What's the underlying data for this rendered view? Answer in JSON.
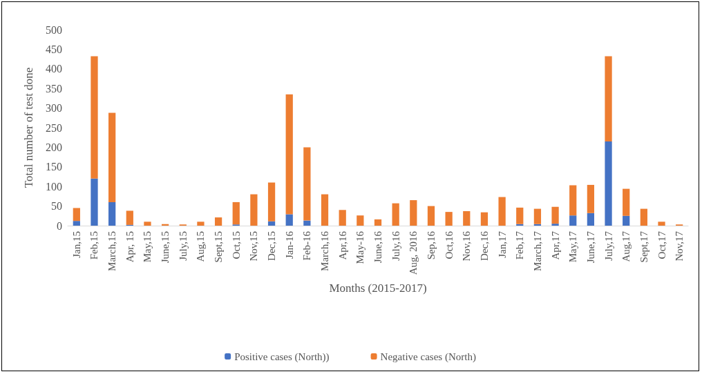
{
  "chart_data": {
    "type": "bar",
    "stacked": true,
    "xlabel": "Months (2015-2017)",
    "ylabel": "Total number of test done",
    "categories": [
      "Jan,15",
      "Feb,15",
      "March,15",
      "Apr, 15",
      "May,15",
      "June,15",
      "July,15",
      "Aug,15",
      "Sept,15",
      "Oct,15",
      "Nov,15",
      "Dec,15",
      "Jan-16",
      "Feb-16",
      "March,16",
      "Apr,16",
      "May-16",
      "June,16",
      "July,16",
      "Aug, 2016",
      "Sep,16",
      "Oct,16",
      "Nov,16",
      "Dec,16",
      "Jan,17",
      "Feb,17",
      "March,17",
      "Apr,17",
      "May,17",
      "June,17",
      "July,17",
      "Aug,17",
      "Sept,17",
      "Oct,17",
      "Nov,17"
    ],
    "series": [
      {
        "name": "Positive cases (North))",
        "color": "#4472c4",
        "values": [
          12,
          120,
          60,
          2,
          0,
          0,
          0,
          0,
          0,
          3,
          0,
          11,
          29,
          13,
          0,
          0,
          0,
          0,
          0,
          0,
          0,
          0,
          0,
          0,
          0,
          4,
          4,
          5,
          26,
          32,
          215,
          25,
          0,
          0,
          0
        ]
      },
      {
        "name": "Negative cases (North)",
        "color": "#ed7d31",
        "values": [
          33,
          312,
          228,
          36,
          10,
          4,
          3,
          10,
          21,
          57,
          80,
          99,
          306,
          187,
          80,
          40,
          26,
          16,
          57,
          65,
          50,
          35,
          37,
          34,
          73,
          42,
          39,
          43,
          77,
          72,
          217,
          69,
          43,
          10,
          3
        ]
      }
    ],
    "ylim": [
      0,
      500
    ],
    "yticks": [
      0,
      50,
      100,
      150,
      200,
      250,
      300,
      350,
      400,
      450,
      500
    ],
    "grid": false,
    "legend": "bottom"
  }
}
